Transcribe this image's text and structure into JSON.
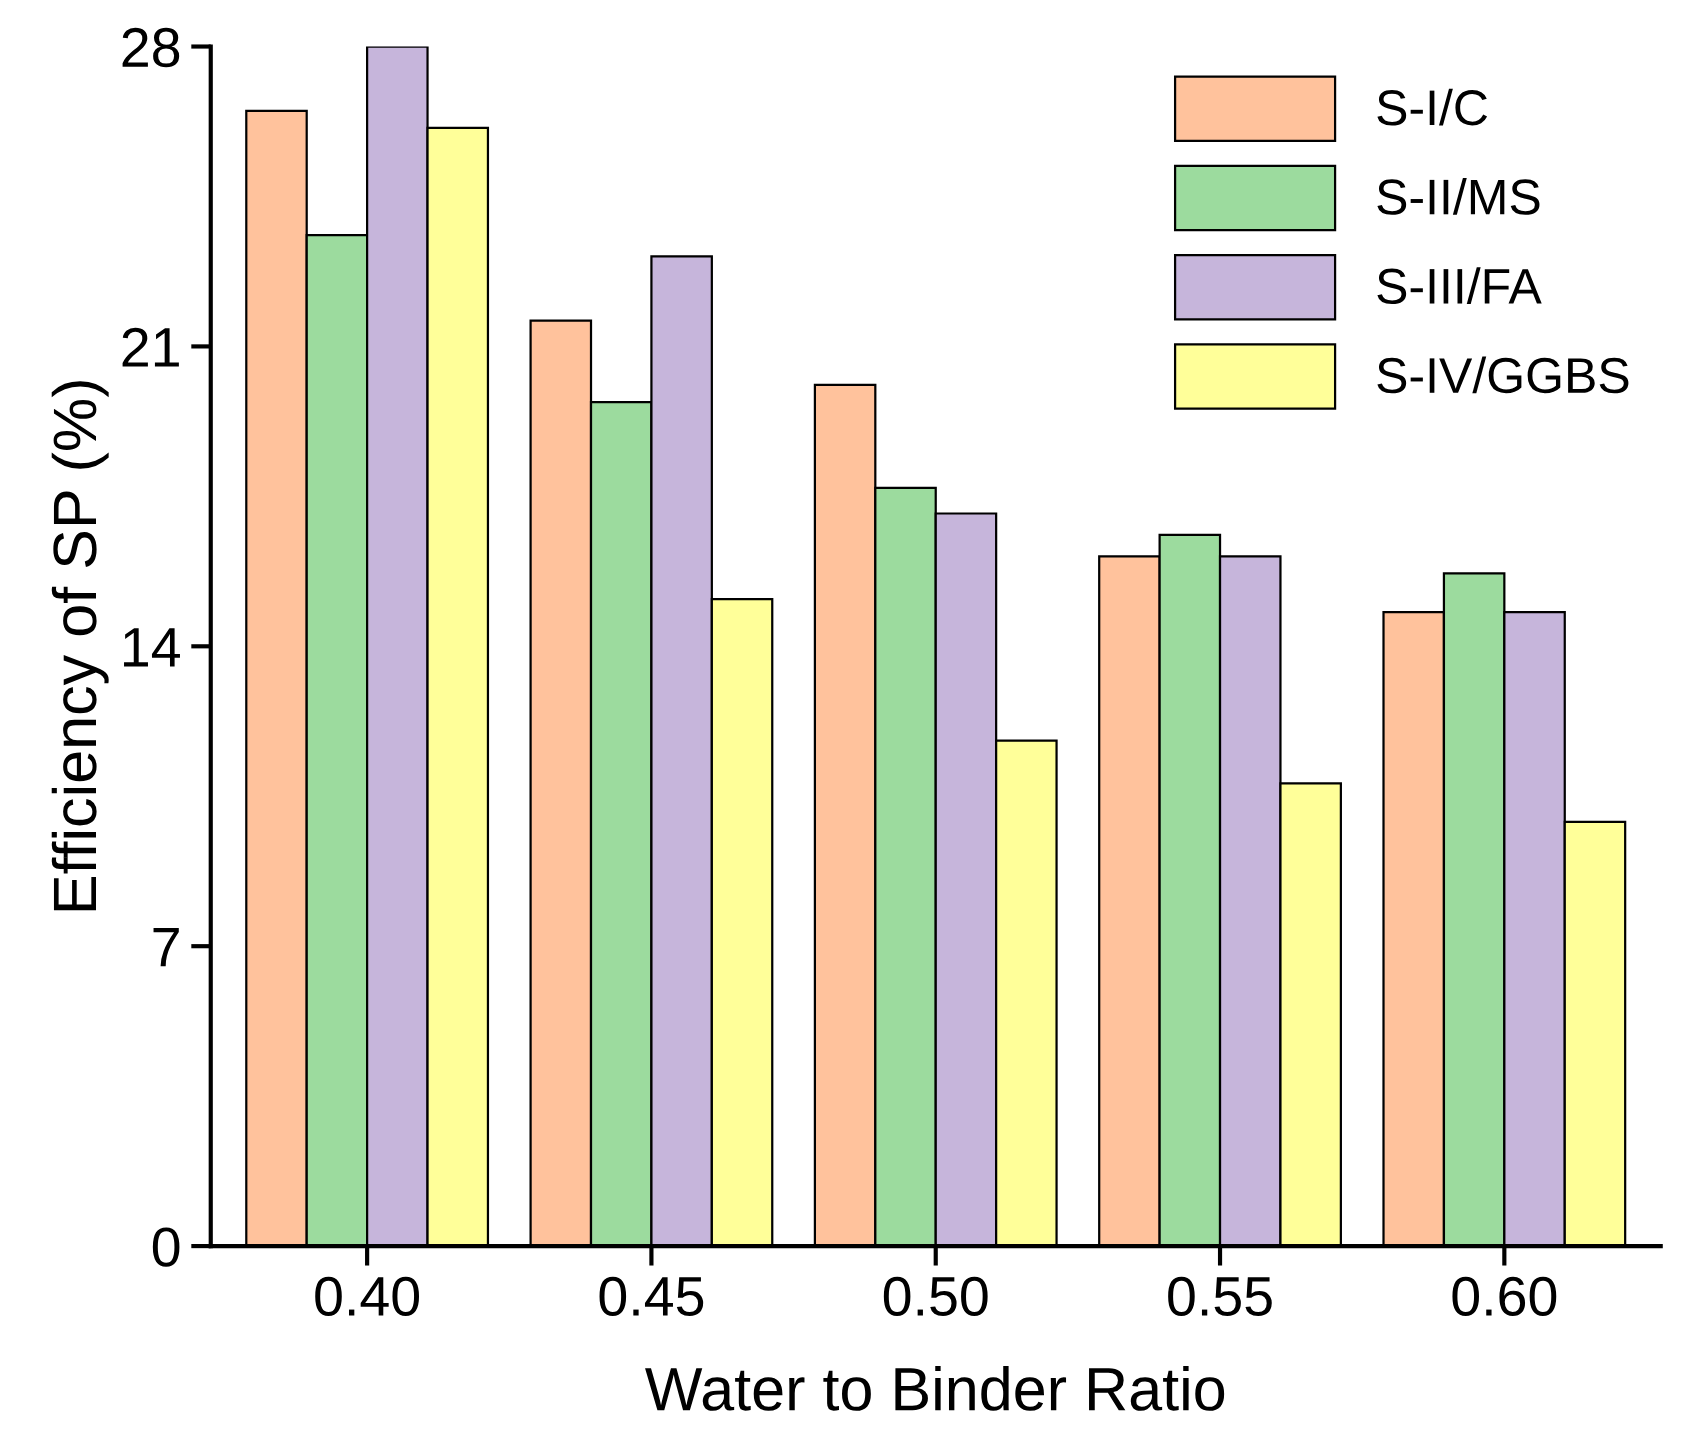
{
  "chart_data": {
    "type": "bar",
    "xlabel": "Water to Binder Ratio",
    "ylabel": "Efficiency of SP (%)",
    "categories": [
      "0.40",
      "0.45",
      "0.50",
      "0.55",
      "0.60"
    ],
    "series": [
      {
        "name": "S-I/C",
        "color": "#ffc29c",
        "values": [
          26.5,
          21.6,
          20.1,
          16.1,
          14.8
        ]
      },
      {
        "name": "S-II/MS",
        "color": "#9cdb9e",
        "values": [
          23.6,
          19.7,
          17.7,
          16.6,
          15.7
        ]
      },
      {
        "name": "S-III/FA",
        "color": "#c6b5db",
        "values": [
          28.0,
          23.1,
          17.1,
          16.1,
          14.8
        ]
      },
      {
        "name": "S-IV/GGBS",
        "color": "#ffff99",
        "values": [
          26.1,
          15.1,
          11.8,
          10.8,
          9.9
        ]
      }
    ],
    "ylim": [
      0,
      28
    ],
    "yticks": [
      0,
      7,
      14,
      21,
      28
    ],
    "grid": false,
    "legend": "top right"
  }
}
